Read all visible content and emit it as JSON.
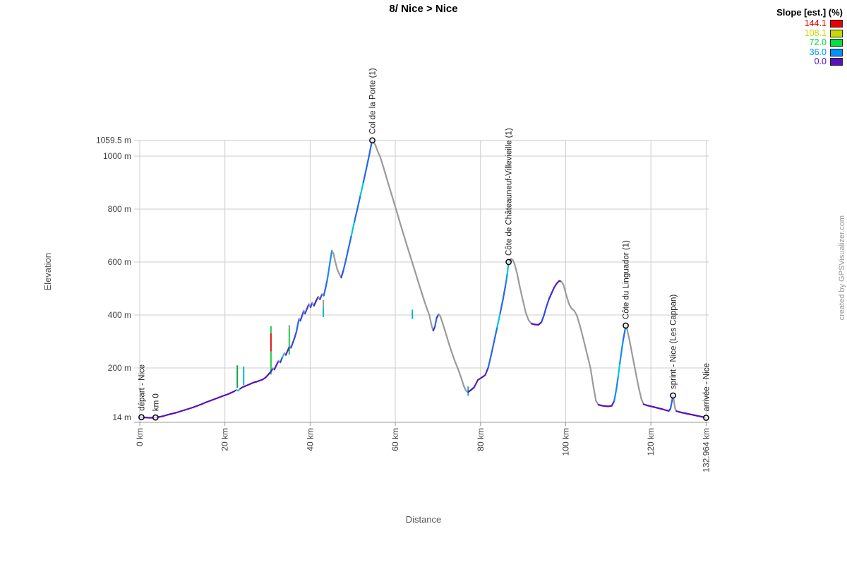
{
  "title": "8/ Nice > Nice",
  "watermark": "created by GPSVisualizer.com",
  "legend": {
    "title": "Slope [est.] (%)",
    "items": [
      {
        "label": "144.1",
        "color": "#ee0000"
      },
      {
        "label": "108.1",
        "color": "#c8d800"
      },
      {
        "label": "72.0",
        "color": "#00e040"
      },
      {
        "label": "36.0",
        "color": "#0090ff"
      },
      {
        "label": "0.0",
        "color": "#5a10c0"
      }
    ]
  },
  "chart_data": {
    "type": "line",
    "title": "8/ Nice > Nice",
    "xlabel": "Distance",
    "ylabel": "Elevation",
    "x_unit": "km",
    "y_unit": "m",
    "xlim": [
      0,
      132.964
    ],
    "ylim": [
      14,
      1059.5
    ],
    "grid": true,
    "legend_position": "top-right",
    "x_ticks": [
      {
        "label": "0 km",
        "value": 0
      },
      {
        "label": "20 km",
        "value": 20
      },
      {
        "label": "40 km",
        "value": 40
      },
      {
        "label": "60 km",
        "value": 60
      },
      {
        "label": "80 km",
        "value": 80
      },
      {
        "label": "100 km",
        "value": 100
      },
      {
        "label": "120 km",
        "value": 120
      },
      {
        "label": "132.964 km",
        "value": 132.964
      }
    ],
    "y_ticks": [
      {
        "label": "1059.5 m",
        "value": 1059.5
      },
      {
        "label": "1000 m",
        "value": 1000
      },
      {
        "label": "800 m",
        "value": 800
      },
      {
        "label": "600 m",
        "value": 600
      },
      {
        "label": "400 m",
        "value": 400
      },
      {
        "label": "200 m",
        "value": 200
      },
      {
        "label": "14 m",
        "value": 14
      }
    ],
    "waypoints": [
      {
        "km": 0.4,
        "elev": 14,
        "label": "départ - Nice"
      },
      {
        "km": 3.7,
        "elev": 13,
        "label": "km 0"
      },
      {
        "km": 54.6,
        "elev": 1059.5,
        "label": "Col de la Porte (1)"
      },
      {
        "km": 86.6,
        "elev": 600,
        "label": "Côte de Châteauneuf-Villevieille (1)"
      },
      {
        "km": 114.1,
        "elev": 360,
        "label": "Côte du Linguador (1)"
      },
      {
        "km": 125.2,
        "elev": 96,
        "label": "sprint - Nice (Les Cappan)"
      },
      {
        "km": 132.964,
        "elev": 12,
        "label": "arrivée - Nice"
      }
    ],
    "profile": [
      [
        0,
        14
      ],
      [
        0.4,
        14
      ],
      [
        1.2,
        13
      ],
      [
        2.2,
        12
      ],
      [
        3,
        12
      ],
      [
        3.7,
        13
      ],
      [
        4.5,
        15
      ],
      [
        5.5,
        18
      ],
      [
        6.5,
        23
      ],
      [
        7.5,
        27
      ],
      [
        8.5,
        31
      ],
      [
        9.5,
        36
      ],
      [
        10.5,
        41
      ],
      [
        11.5,
        46
      ],
      [
        12.5,
        51
      ],
      [
        13.5,
        57
      ],
      [
        14.5,
        63
      ],
      [
        15.5,
        70
      ],
      [
        16.5,
        76
      ],
      [
        17.5,
        82
      ],
      [
        18.5,
        88
      ],
      [
        19.3,
        93
      ],
      [
        20,
        97
      ],
      [
        20.7,
        101
      ],
      [
        21.4,
        106
      ],
      [
        22.1,
        111
      ],
      [
        22.7,
        117
      ],
      [
        23.1,
        114
      ],
      [
        23.6,
        122,
        "#00c8d8"
      ],
      [
        24.1,
        127
      ],
      [
        24.7,
        131
      ],
      [
        25.3,
        135
      ],
      [
        26,
        140
      ],
      [
        26.7,
        145
      ],
      [
        27.4,
        148
      ],
      [
        28.1,
        152
      ],
      [
        28.8,
        156
      ],
      [
        29.4,
        162
      ],
      [
        29.9,
        170
      ],
      [
        30.4,
        179
      ],
      [
        30.9,
        189
      ],
      [
        31.3,
        199
      ],
      [
        31.6,
        194
      ],
      [
        32.1,
        211
      ],
      [
        32.6,
        227
      ],
      [
        33,
        221
      ],
      [
        33.5,
        241
      ],
      [
        34,
        256,
        "#00c8d8"
      ],
      [
        34.3,
        249
      ],
      [
        34.8,
        268
      ],
      [
        35.2,
        283
      ],
      [
        35.5,
        276
      ],
      [
        36,
        298
      ],
      [
        36.4,
        316
      ],
      [
        36.8,
        338
      ],
      [
        37.1,
        363
      ],
      [
        37.4,
        386
      ],
      [
        37.7,
        378
      ],
      [
        38.1,
        397
      ],
      [
        38.5,
        416
      ],
      [
        38.8,
        405
      ],
      [
        39.3,
        425
      ],
      [
        39.7,
        441
      ],
      [
        40.1,
        429
      ],
      [
        40.5,
        447
      ],
      [
        40.9,
        435
      ],
      [
        41.4,
        453
      ],
      [
        41.9,
        469
      ],
      [
        42.3,
        459
      ],
      [
        42.8,
        479
      ],
      [
        43.2,
        473
      ],
      [
        43.6,
        501
      ],
      [
        44,
        531
      ],
      [
        44.4,
        571
      ],
      [
        44.8,
        613
      ],
      [
        45.1,
        643
      ],
      [
        45.5,
        631
      ],
      [
        45.9,
        601
      ],
      [
        46.4,
        571
      ],
      [
        46.9,
        553
      ],
      [
        47.3,
        541
      ],
      [
        47.8,
        568
      ],
      [
        48.4,
        608
      ],
      [
        49,
        651
      ],
      [
        49.7,
        701
      ],
      [
        50.4,
        753,
        "#00c8d8"
      ],
      [
        51.1,
        801
      ],
      [
        51.8,
        851
      ],
      [
        52.5,
        901,
        "#00c8d8"
      ],
      [
        53.2,
        953
      ],
      [
        53.9,
        1006
      ],
      [
        54.3,
        1039
      ],
      [
        54.6,
        1059.5
      ],
      [
        54.9,
        1051
      ],
      [
        55.3,
        1043
      ],
      [
        55.6,
        1029
      ],
      [
        56,
        1013
      ],
      [
        56.4,
        999
      ],
      [
        57,
        969
      ],
      [
        57.7,
        931
      ],
      [
        58.4,
        893
      ],
      [
        59.1,
        856
      ],
      [
        59.8,
        819
      ],
      [
        60.5,
        781
      ],
      [
        61.2,
        743
      ],
      [
        61.9,
        706
      ],
      [
        62.6,
        669
      ],
      [
        63.3,
        633
      ],
      [
        64,
        597
      ],
      [
        64.7,
        561
      ],
      [
        65.4,
        524
      ],
      [
        66.1,
        489
      ],
      [
        66.8,
        453
      ],
      [
        67.5,
        421
      ],
      [
        68,
        399
      ],
      [
        68.5,
        361
      ],
      [
        68.9,
        341
      ],
      [
        69.3,
        356
      ],
      [
        69.7,
        389
      ],
      [
        70.2,
        403
      ],
      [
        70.6,
        394
      ],
      [
        71.1,
        369
      ],
      [
        71.7,
        339
      ],
      [
        72.4,
        301
      ],
      [
        73.1,
        266
      ],
      [
        73.9,
        229
      ],
      [
        74.7,
        197
      ],
      [
        75.5,
        161
      ],
      [
        76.1,
        131
      ],
      [
        76.6,
        114
      ],
      [
        77.1,
        109
      ],
      [
        77.7,
        116
      ],
      [
        78.5,
        127
      ],
      [
        79.4,
        155
      ],
      [
        80.3,
        164
      ],
      [
        81.1,
        173
      ],
      [
        81.8,
        201
      ],
      [
        82.5,
        249
      ],
      [
        83.2,
        301
      ],
      [
        83.9,
        353
      ],
      [
        84.6,
        406,
        "#00c8d8"
      ],
      [
        85.3,
        461
      ],
      [
        85.9,
        515
      ],
      [
        86.3,
        556
      ],
      [
        86.6,
        600
      ],
      [
        86.9,
        605
      ],
      [
        87.2,
        612
      ],
      [
        87.6,
        607
      ],
      [
        88,
        592
      ],
      [
        88.6,
        556
      ],
      [
        89.2,
        508
      ],
      [
        89.9,
        458
      ],
      [
        90.6,
        410
      ],
      [
        91.3,
        380
      ],
      [
        92,
        367
      ],
      [
        92.8,
        364
      ],
      [
        93.6,
        363
      ],
      [
        94.3,
        373
      ],
      [
        94.9,
        399
      ],
      [
        95.5,
        433
      ],
      [
        96.1,
        461
      ],
      [
        96.7,
        483
      ],
      [
        97.3,
        504
      ],
      [
        97.9,
        519
      ],
      [
        98.5,
        529
      ],
      [
        99,
        526
      ],
      [
        99.5,
        513
      ],
      [
        100.2,
        471
      ],
      [
        100.8,
        441
      ],
      [
        101.3,
        426
      ],
      [
        102,
        416
      ],
      [
        102.6,
        399
      ],
      [
        103.4,
        356
      ],
      [
        104.2,
        306
      ],
      [
        105,
        253
      ],
      [
        105.8,
        201
      ],
      [
        106.5,
        131
      ],
      [
        107.1,
        76
      ],
      [
        107.7,
        61
      ],
      [
        108.4,
        58
      ],
      [
        109.2,
        56
      ],
      [
        110,
        55
      ],
      [
        110.8,
        57
      ],
      [
        111.4,
        76
      ],
      [
        111.9,
        121
      ],
      [
        112.3,
        166
      ],
      [
        112.7,
        216,
        "#00c8d8"
      ],
      [
        113.1,
        263
      ],
      [
        113.5,
        306
      ],
      [
        113.9,
        341
      ],
      [
        114.1,
        360
      ],
      [
        114.4,
        346
      ],
      [
        114.9,
        311
      ],
      [
        115.4,
        269
      ],
      [
        116,
        219
      ],
      [
        116.6,
        169
      ],
      [
        117.2,
        121
      ],
      [
        117.8,
        81
      ],
      [
        118.3,
        63
      ],
      [
        119,
        59
      ],
      [
        119.8,
        56
      ],
      [
        120.8,
        52
      ],
      [
        121.8,
        48
      ],
      [
        122.8,
        44
      ],
      [
        123.6,
        40
      ],
      [
        124.2,
        38
      ],
      [
        124.6,
        46
      ],
      [
        125,
        79
      ],
      [
        125.2,
        96
      ],
      [
        125.45,
        71
      ],
      [
        125.7,
        46
      ],
      [
        126,
        37
      ],
      [
        126.6,
        34
      ],
      [
        127.4,
        31
      ],
      [
        128.3,
        28
      ],
      [
        129.2,
        25
      ],
      [
        130.1,
        22
      ],
      [
        131,
        19
      ],
      [
        131.9,
        16
      ],
      [
        132.5,
        14
      ],
      [
        132.964,
        12
      ]
    ],
    "spikes": [
      {
        "km": 22.9,
        "segments": [
          [
            125,
            210,
            "#18a048"
          ]
        ]
      },
      {
        "km": 24.4,
        "segments": [
          [
            135,
            205,
            "#00b8c8"
          ]
        ]
      },
      {
        "km": 30.8,
        "segments": [
          [
            175,
            262,
            "#22cc44"
          ],
          [
            262,
            331,
            "#e01010"
          ],
          [
            331,
            358,
            "#22cc44"
          ]
        ]
      },
      {
        "km": 35.1,
        "segments": [
          [
            250,
            350,
            "#22cc44"
          ],
          [
            350,
            362,
            "#999999"
          ]
        ]
      },
      {
        "km": 43.1,
        "segments": [
          [
            392,
            428,
            "#00b8c8"
          ],
          [
            428,
            456,
            "#999999"
          ]
        ]
      },
      {
        "km": 64.0,
        "segments": [
          [
            385,
            420,
            "#00b8c8"
          ]
        ]
      },
      {
        "km": 77.1,
        "segments": [
          [
            95,
            130,
            "#00b8c8"
          ]
        ]
      }
    ]
  }
}
